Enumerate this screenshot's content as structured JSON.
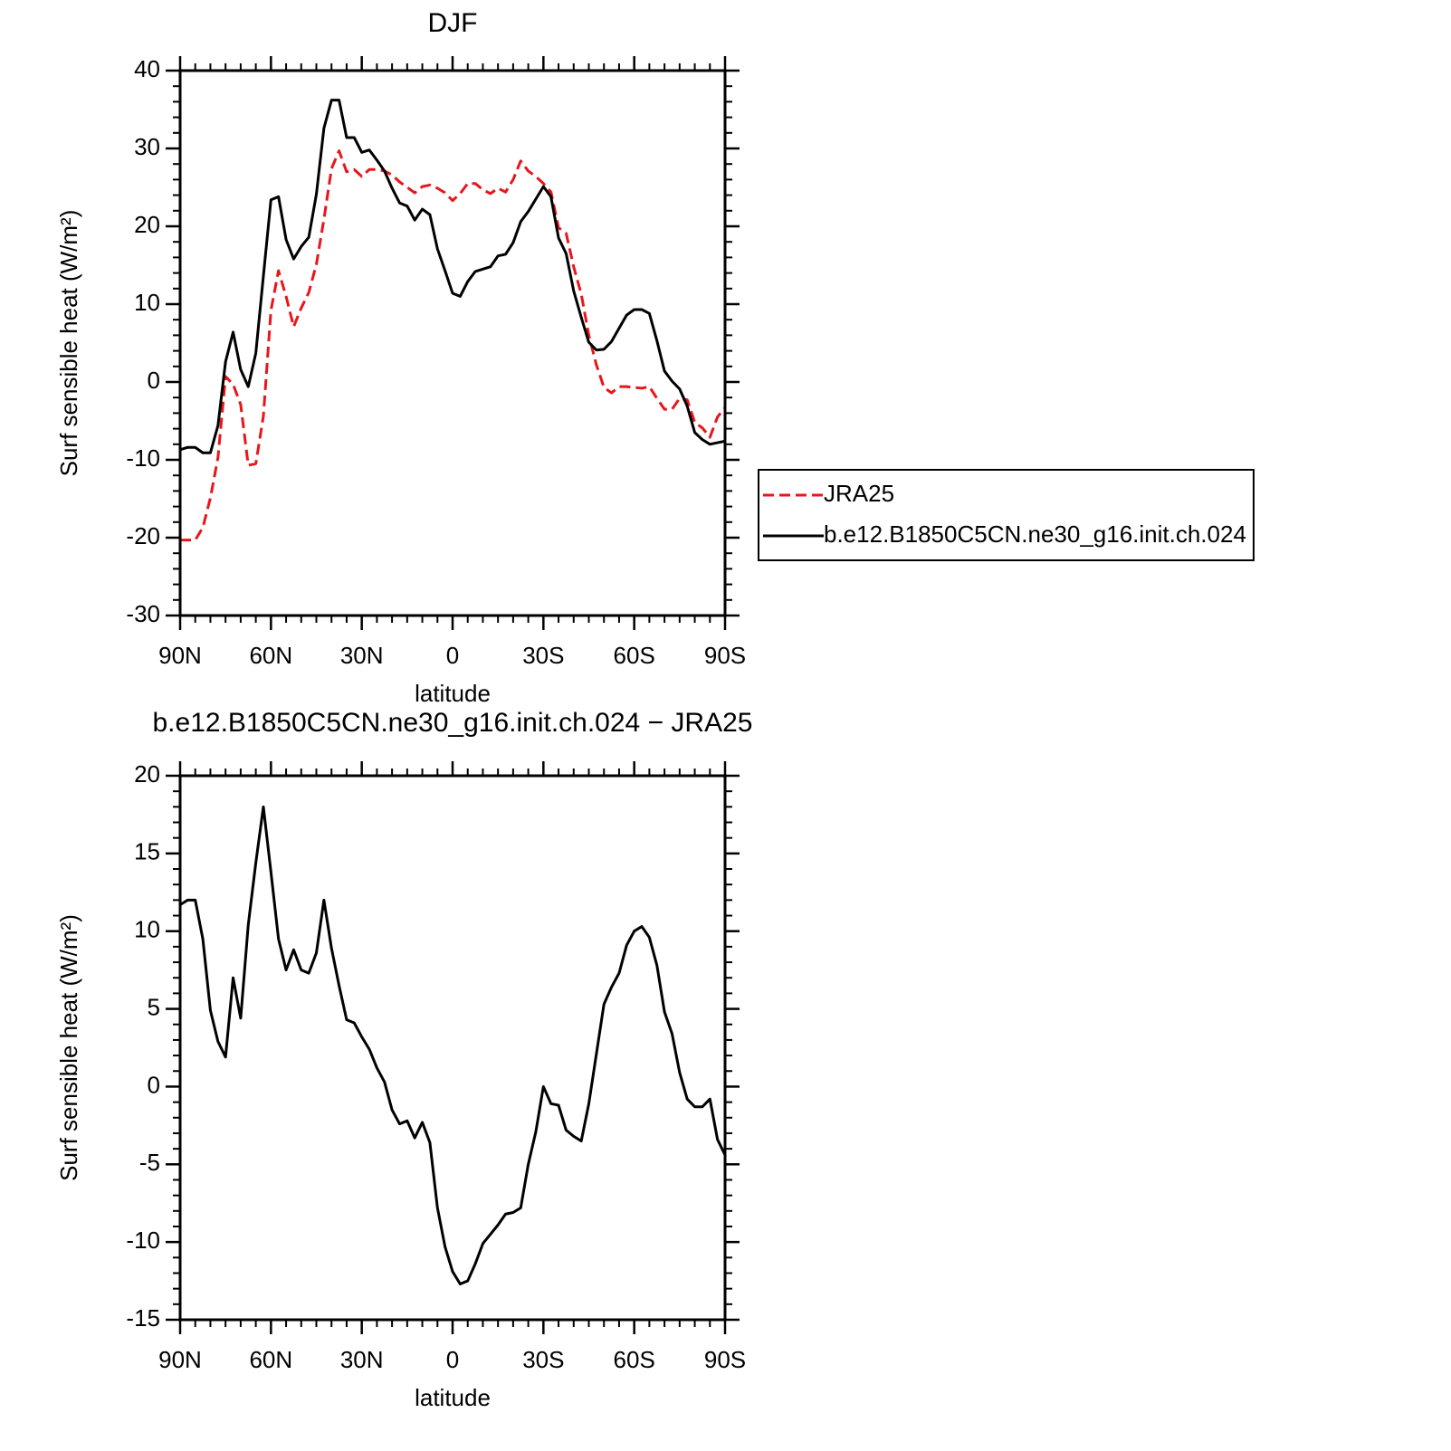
{
  "chart_data": [
    {
      "type": "line",
      "title": "DJF",
      "x": [
        90,
        87.5,
        85,
        82.5,
        80,
        77.5,
        75,
        72.5,
        70,
        67.5,
        65,
        62.5,
        60,
        57.5,
        55,
        52.5,
        50,
        47.5,
        45,
        42.5,
        40,
        37.5,
        35,
        32.5,
        30,
        27.5,
        25,
        22.5,
        20,
        17.5,
        15,
        12.5,
        10,
        7.5,
        5,
        2.5,
        0,
        -2.5,
        -5,
        -7.5,
        -10,
        -12.5,
        -15,
        -17.5,
        -20,
        -22.5,
        -25,
        -27.5,
        -30,
        -32.5,
        -35,
        -37.5,
        -40,
        -42.5,
        -45,
        -47.5,
        -50,
        -52.5,
        -55,
        -57.5,
        -60,
        -62.5,
        -65,
        -67.5,
        -70,
        -72.5,
        -75,
        -77.5,
        -80,
        -82.5,
        -85,
        -87.5,
        -90
      ],
      "series": [
        {
          "name": "JRA25",
          "color": "#e8161b",
          "dashed": true,
          "values": [
            -20.3,
            -20.3,
            -20.3,
            -18.7,
            -14.9,
            -9.7,
            0.7,
            -0.3,
            -2.9,
            -10.7,
            -10.5,
            -4.4,
            9.2,
            14.3,
            11.0,
            7.1,
            9.5,
            11.5,
            15.1,
            20.9,
            27.4,
            29.7,
            27,
            27.3,
            26.4,
            27.3,
            27.3,
            27.1,
            26.6,
            25.7,
            25.0,
            24.3,
            25.1,
            25.3,
            24.9,
            24.3,
            23.3,
            24.2,
            25.5,
            25.5,
            24.7,
            24.2,
            24.9,
            24.4,
            26.0,
            28.4,
            27.1,
            26.4,
            25.5,
            24.4,
            19.8,
            19.1,
            14.8,
            11.3,
            6.0,
            2.2,
            -0.7,
            -1.4,
            -0.6,
            -0.6,
            -0.7,
            -0.8,
            -0.6,
            -2.1,
            -3.5,
            -3.5,
            -2.1,
            -2.3,
            -5.2,
            -5.9,
            -7.1,
            -4.5,
            -3.3
          ]
        },
        {
          "name": "b.e12.B1850C5CN.ne30_g16.init.ch.024",
          "color": "#000000",
          "dashed": false,
          "values": [
            -8.7,
            -8.4,
            -8.4,
            -9.1,
            -9.1,
            -5.6,
            2.6,
            6.4,
            1.6,
            -0.6,
            3.7,
            13.6,
            23.4,
            23.8,
            18.3,
            15.8,
            17.4,
            18.6,
            24.1,
            32.6,
            36.2,
            36.2,
            31.4,
            31.4,
            29.5,
            29.8,
            28.5,
            27.1,
            24.9,
            23.0,
            22.6,
            20.8,
            22.2,
            21.5,
            17.1,
            14.3,
            11.4,
            11.0,
            12.9,
            14.2,
            14.5,
            14.8,
            16.2,
            16.4,
            17.9,
            20.6,
            21.9,
            23.5,
            25.1,
            23.8,
            18.5,
            16.5,
            11.7,
            8.3,
            5.1,
            4.1,
            4.2,
            5.2,
            6.9,
            8.6,
            9.3,
            9.3,
            8.8,
            5.3,
            1.4,
            0.1,
            -0.9,
            -3.1,
            -6.5,
            -7.4,
            -8.0,
            -7.8,
            -7.6
          ]
        }
      ],
      "xlim": [
        90,
        -90
      ],
      "xticks": [
        {
          "value": 90,
          "label": "90N"
        },
        {
          "value": 60,
          "label": "60N"
        },
        {
          "value": 30,
          "label": "30N"
        },
        0,
        {
          "value": -30,
          "label": "30S"
        },
        {
          "value": -60,
          "label": "60S"
        },
        {
          "value": -90,
          "label": "90S"
        }
      ],
      "ylim": [
        -30,
        40
      ],
      "yticks": [
        -30,
        -20,
        -10,
        0,
        10,
        20,
        30,
        40
      ],
      "xlabel": "latitude",
      "ylabel": "Surf sensible heat (W/m²)",
      "legend": "right"
    },
    {
      "type": "line",
      "title": "b.e12.B1850C5CN.ne30_g16.init.ch.024 − JRA25",
      "x": [
        90,
        87.5,
        85,
        82.5,
        80,
        77.5,
        75,
        72.5,
        70,
        67.5,
        65,
        62.5,
        60,
        57.5,
        55,
        52.5,
        50,
        47.5,
        45,
        42.5,
        40,
        37.5,
        35,
        32.5,
        30,
        27.5,
        25,
        22.5,
        20,
        17.5,
        15,
        12.5,
        10,
        7.5,
        5,
        2.5,
        0,
        -2.5,
        -5,
        -7.5,
        -10,
        -12.5,
        -15,
        -17.5,
        -20,
        -22.5,
        -25,
        -27.5,
        -30,
        -32.5,
        -35,
        -37.5,
        -40,
        -42.5,
        -45,
        -47.5,
        -50,
        -52.5,
        -55,
        -57.5,
        -60,
        -62.5,
        -65,
        -67.5,
        -70,
        -72.5,
        -75,
        -77.5,
        -80,
        -82.5,
        -85,
        -87.5,
        -90
      ],
      "series": [
        {
          "color": "#000000",
          "dashed": false,
          "values": [
            11.7,
            12.0,
            12.0,
            9.5,
            4.9,
            2.9,
            1.9,
            7.0,
            4.4,
            10.4,
            14.4,
            18.0,
            13.8,
            9.5,
            7.5,
            8.8,
            7.5,
            7.3,
            8.6,
            12.0,
            8.9,
            6.5,
            4.3,
            4.1,
            3.2,
            2.4,
            1.2,
            0.3,
            -1.5,
            -2.4,
            -2.2,
            -3.3,
            -2.3,
            -3.6,
            -7.8,
            -10.3,
            -11.9,
            -12.7,
            -12.5,
            -11.4,
            -10.1,
            -9.5,
            -8.9,
            -8.2,
            -8.1,
            -7.8,
            -5.0,
            -2.9,
            0.0,
            -1.1,
            -1.2,
            -2.8,
            -3.2,
            -3.5,
            -1.1,
            2.1,
            5.3,
            6.4,
            7.3,
            9.1,
            10.0,
            10.3,
            9.6,
            7.8,
            4.8,
            3.4,
            0.9,
            -0.8,
            -1.3,
            -1.3,
            -0.8,
            -3.4,
            -4.4
          ]
        }
      ],
      "xlim": [
        90,
        -90
      ],
      "xticks": [
        {
          "value": 90,
          "label": "90N"
        },
        {
          "value": 60,
          "label": "60N"
        },
        {
          "value": 30,
          "label": "30N"
        },
        0,
        {
          "value": -30,
          "label": "30S"
        },
        {
          "value": -60,
          "label": "60S"
        },
        {
          "value": -90,
          "label": "90S"
        }
      ],
      "ylim": [
        -15,
        20
      ],
      "yticks": [
        -15,
        -10,
        -5,
        0,
        5,
        10,
        15,
        20
      ],
      "xlabel": "latitude",
      "ylabel": "Surf sensible heat (W/m²)"
    }
  ]
}
